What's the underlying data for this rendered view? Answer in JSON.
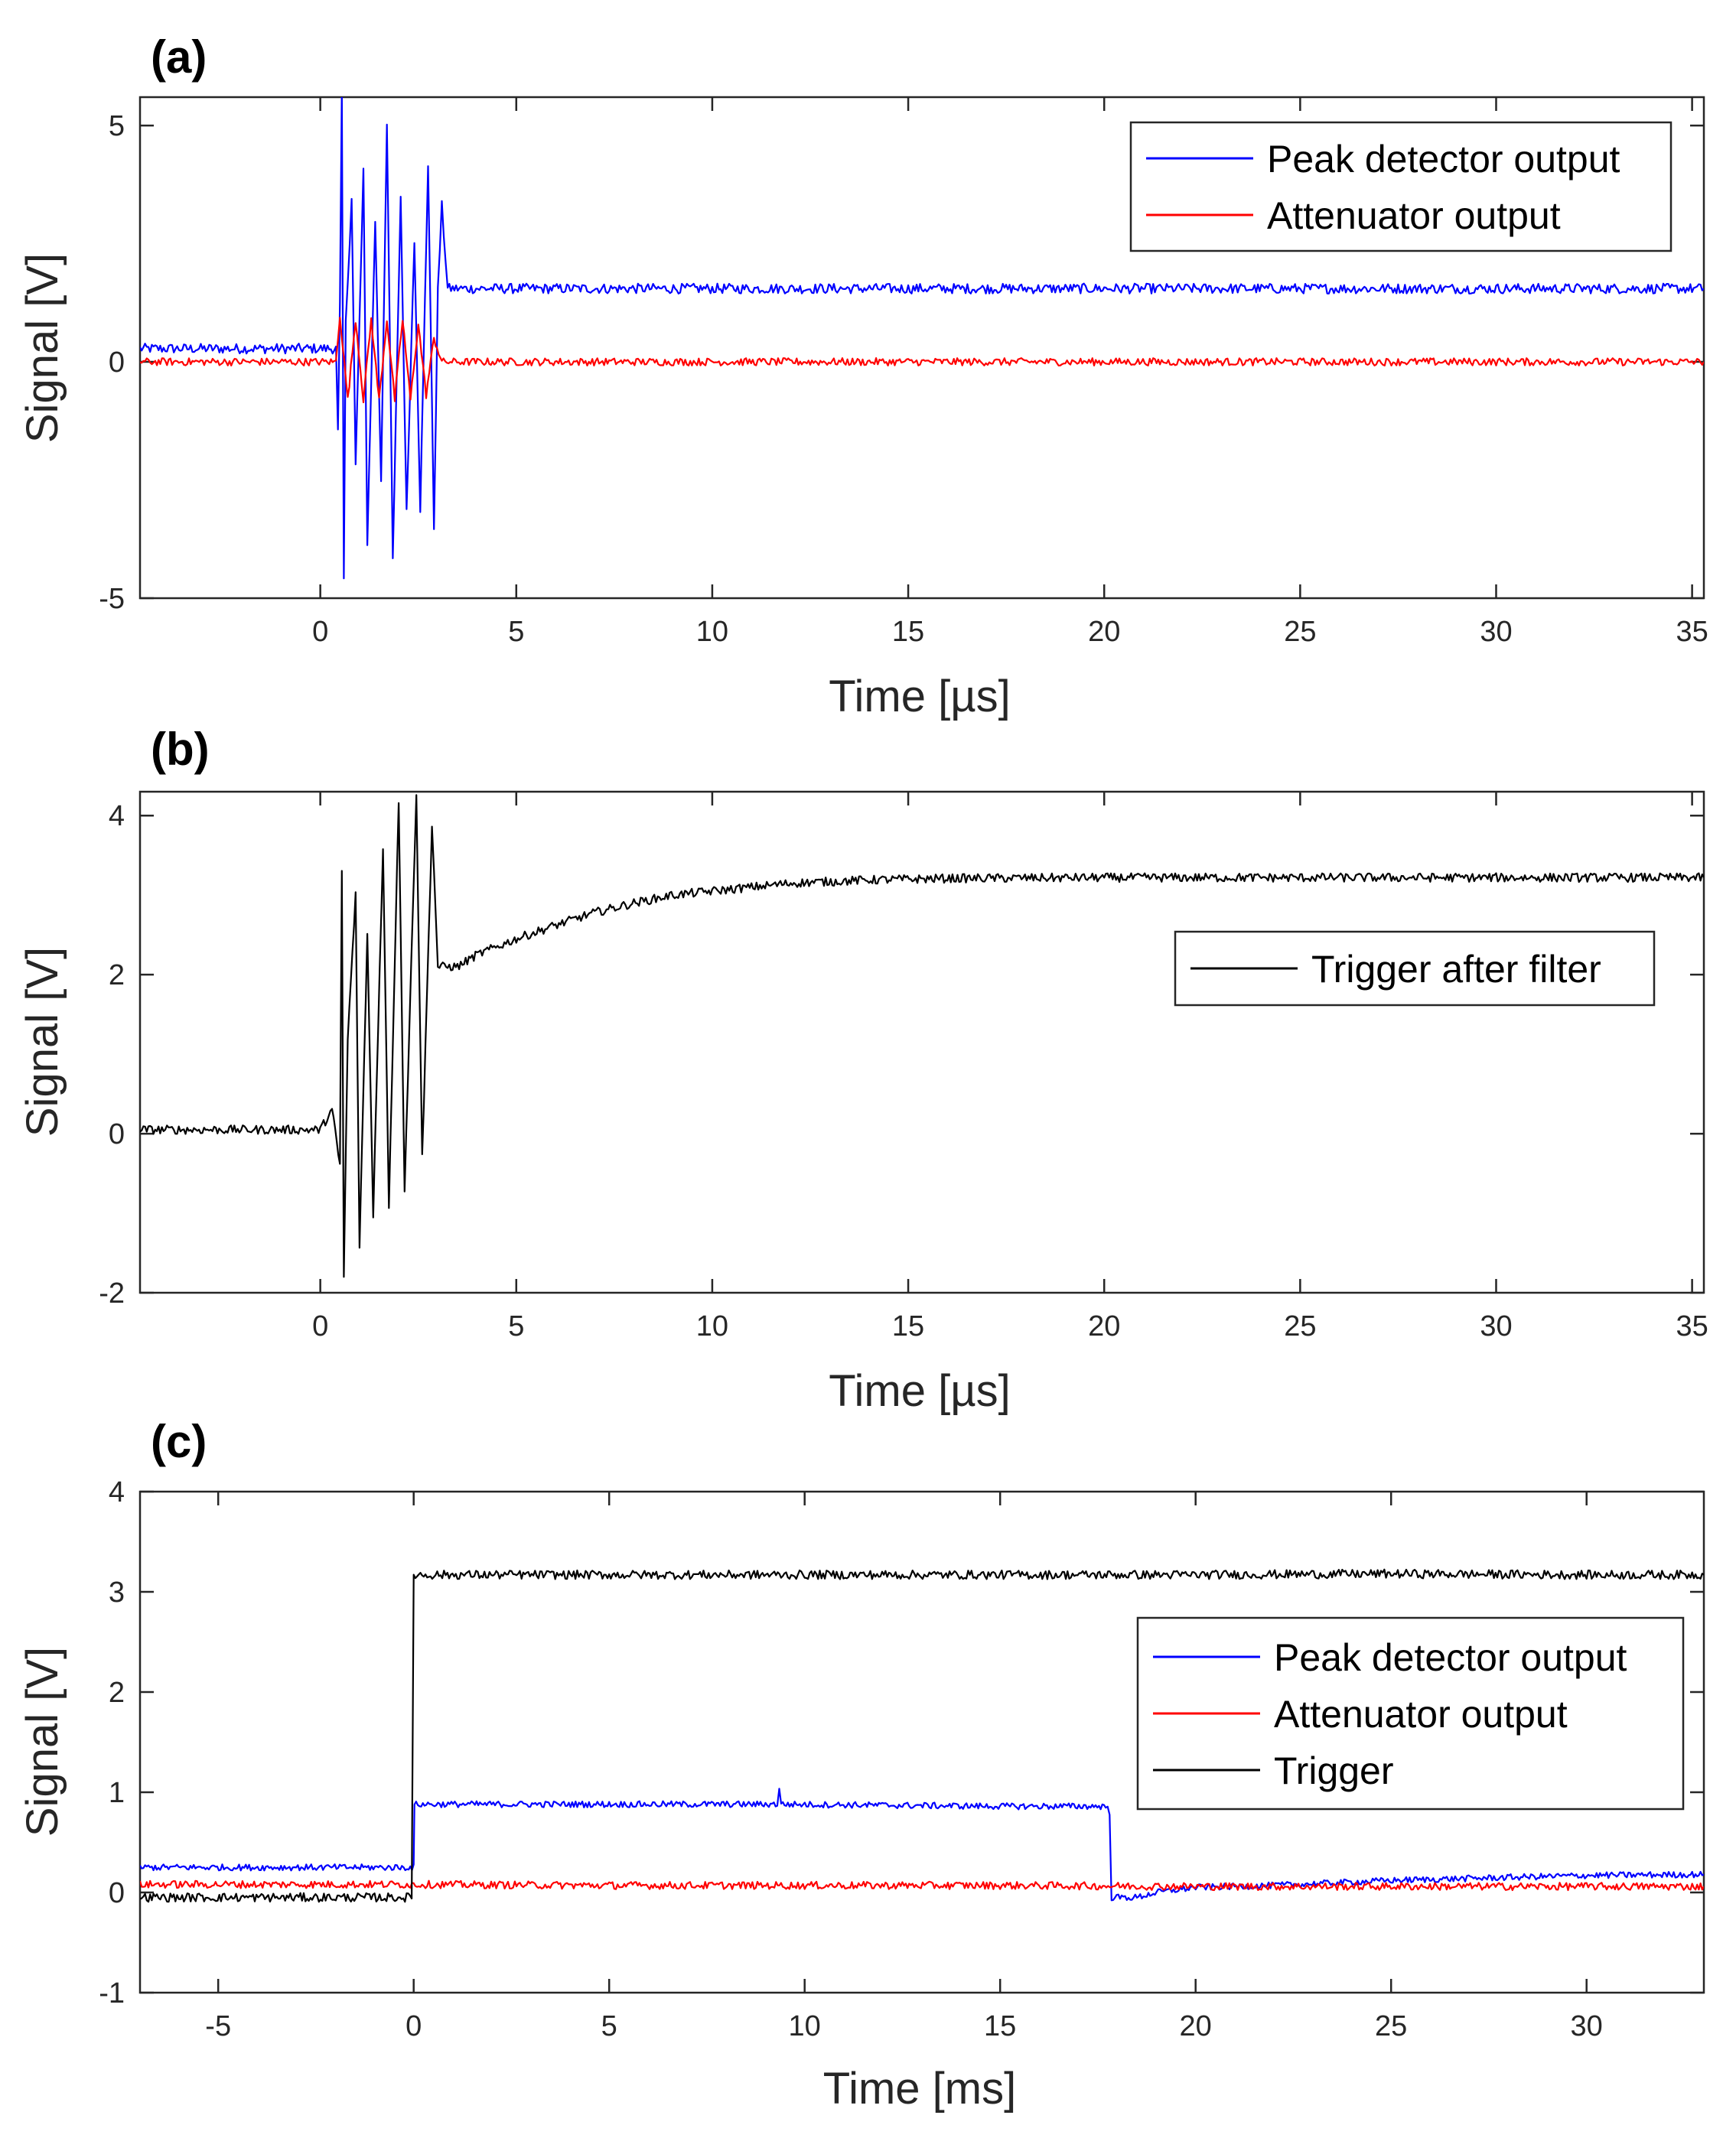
{
  "chart_data": [
    {
      "type": "line",
      "panel_label": "(a)",
      "xlabel": "Time [µs]",
      "ylabel": "Signal [V]",
      "xlim": [
        -4.6,
        35.3
      ],
      "ylim": [
        -5,
        5.6
      ],
      "xticks": [
        0,
        5,
        10,
        15,
        20,
        25,
        30,
        35
      ],
      "yticks": [
        -5,
        0,
        5
      ],
      "xtick_labels": [
        "0",
        "5",
        "10",
        "15",
        "20",
        "25",
        "30",
        "35"
      ],
      "ytick_labels": [
        "-5",
        "0",
        "5"
      ],
      "legend_position": "top-right",
      "series": [
        {
          "name": "Peak detector output",
          "color": "#0000ff",
          "points": [
            [
              -4.6,
              0.28
            ],
            [
              0.4,
              0.28
            ],
            [
              0.45,
              -1.5
            ],
            [
              0.5,
              1.2
            ],
            [
              0.55,
              5.7
            ],
            [
              0.6,
              -4.6
            ],
            [
              0.65,
              0.8
            ],
            [
              0.8,
              3.5
            ],
            [
              0.9,
              -2.2
            ],
            [
              1.1,
              4.0
            ],
            [
              1.2,
              -3.8
            ],
            [
              1.4,
              3.0
            ],
            [
              1.55,
              -2.5
            ],
            [
              1.7,
              5.1
            ],
            [
              1.85,
              -4.2
            ],
            [
              2.05,
              3.5
            ],
            [
              2.2,
              -3.2
            ],
            [
              2.4,
              2.6
            ],
            [
              2.55,
              -3.1
            ],
            [
              2.75,
              4.2
            ],
            [
              2.9,
              -3.5
            ],
            [
              3.0,
              1.5
            ],
            [
              3.1,
              3.3
            ],
            [
              3.25,
              1.55
            ],
            [
              5,
              1.55
            ],
            [
              10,
              1.55
            ],
            [
              15,
              1.55
            ],
            [
              20,
              1.55
            ],
            [
              25,
              1.55
            ],
            [
              30,
              1.55
            ],
            [
              35.3,
              1.55
            ]
          ]
        },
        {
          "name": "Attenuator output",
          "color": "#ff0000",
          "points": [
            [
              -4.6,
              0.0
            ],
            [
              0.4,
              0.0
            ],
            [
              0.5,
              1.0
            ],
            [
              0.7,
              -0.8
            ],
            [
              0.9,
              0.9
            ],
            [
              1.1,
              -0.8
            ],
            [
              1.3,
              0.9
            ],
            [
              1.5,
              -0.8
            ],
            [
              1.7,
              0.9
            ],
            [
              1.9,
              -0.8
            ],
            [
              2.1,
              0.9
            ],
            [
              2.3,
              -0.8
            ],
            [
              2.5,
              0.8
            ],
            [
              2.7,
              -0.7
            ],
            [
              2.9,
              0.5
            ],
            [
              3.1,
              0.0
            ],
            [
              5,
              0.0
            ],
            [
              10,
              0.0
            ],
            [
              15,
              0.0
            ],
            [
              20,
              0.0
            ],
            [
              25,
              0.0
            ],
            [
              30,
              0.0
            ],
            [
              35.3,
              0.0
            ]
          ]
        }
      ]
    },
    {
      "type": "line",
      "panel_label": "(b)",
      "xlabel": "Time [µs]",
      "ylabel": "Signal [V]",
      "xlim": [
        -4.6,
        35.3
      ],
      "ylim": [
        -2,
        4.3
      ],
      "xticks": [
        0,
        5,
        10,
        15,
        20,
        25,
        30,
        35
      ],
      "yticks": [
        -2,
        0,
        2,
        4
      ],
      "xtick_labels": [
        "0",
        "5",
        "10",
        "15",
        "20",
        "25",
        "30",
        "35"
      ],
      "ytick_labels": [
        "-2",
        "0",
        "2",
        "4"
      ],
      "legend_position": "middle-right",
      "series": [
        {
          "name": "Trigger after filter",
          "color": "#000000",
          "points": [
            [
              -4.6,
              0.05
            ],
            [
              0,
              0.05
            ],
            [
              0.3,
              0.3
            ],
            [
              0.5,
              -0.4
            ],
            [
              0.55,
              3.3
            ],
            [
              0.6,
              -1.8
            ],
            [
              0.7,
              1.2
            ],
            [
              0.9,
              3.0
            ],
            [
              1.0,
              -1.4
            ],
            [
              1.2,
              2.5
            ],
            [
              1.35,
              -1.0
            ],
            [
              1.6,
              3.6
            ],
            [
              1.75,
              -0.9
            ],
            [
              2.0,
              4.2
            ],
            [
              2.15,
              -0.7
            ],
            [
              2.45,
              4.3
            ],
            [
              2.6,
              -0.3
            ],
            [
              2.85,
              3.9
            ],
            [
              3.0,
              2.1
            ],
            [
              3.5,
              2.1
            ],
            [
              4,
              2.25
            ],
            [
              5,
              2.45
            ],
            [
              6,
              2.62
            ],
            [
              7,
              2.78
            ],
            [
              8,
              2.9
            ],
            [
              9,
              3.0
            ],
            [
              10,
              3.05
            ],
            [
              11,
              3.1
            ],
            [
              12,
              3.15
            ],
            [
              14,
              3.19
            ],
            [
              16,
              3.21
            ],
            [
              20,
              3.22
            ],
            [
              25,
              3.22
            ],
            [
              30,
              3.22
            ],
            [
              35.3,
              3.22
            ]
          ]
        }
      ]
    },
    {
      "type": "line",
      "panel_label": "(c)",
      "xlabel": "Time [ms]",
      "ylabel": "Signal [V]",
      "xlim": [
        -7,
        33
      ],
      "ylim": [
        -1,
        4
      ],
      "xticks": [
        -5,
        0,
        5,
        10,
        15,
        20,
        25,
        30
      ],
      "yticks": [
        -1,
        0,
        1,
        2,
        3,
        4
      ],
      "xtick_labels": [
        "-5",
        "0",
        "5",
        "10",
        "15",
        "20",
        "25",
        "30"
      ],
      "ytick_labels": [
        "-1",
        "0",
        "1",
        "2",
        "3",
        "4"
      ],
      "legend_position": "middle-right",
      "series": [
        {
          "name": "Peak detector output",
          "color": "#0000ff",
          "points": [
            [
              -7,
              0.25
            ],
            [
              0,
              0.25
            ],
            [
              0.02,
              0.88
            ],
            [
              5,
              0.88
            ],
            [
              9.3,
              0.88
            ],
            [
              9.35,
              1.05
            ],
            [
              9.4,
              0.88
            ],
            [
              15,
              0.86
            ],
            [
              17.7,
              0.86
            ],
            [
              17.8,
              0.8
            ],
            [
              17.85,
              -0.05
            ],
            [
              18.5,
              -0.05
            ],
            [
              19,
              0.0
            ],
            [
              20,
              0.05
            ],
            [
              22,
              0.07
            ],
            [
              25,
              0.12
            ],
            [
              30,
              0.17
            ],
            [
              33,
              0.18
            ]
          ]
        },
        {
          "name": "Attenuator output",
          "color": "#ff0000",
          "points": [
            [
              -7,
              0.08
            ],
            [
              0,
              0.08
            ],
            [
              5,
              0.07
            ],
            [
              10,
              0.07
            ],
            [
              15,
              0.07
            ],
            [
              20,
              0.06
            ],
            [
              25,
              0.06
            ],
            [
              30,
              0.06
            ],
            [
              33,
              0.06
            ]
          ]
        },
        {
          "name": "Trigger",
          "color": "#000000",
          "points": [
            [
              -7,
              -0.05
            ],
            [
              -0.05,
              -0.05
            ],
            [
              0,
              3.17
            ],
            [
              5,
              3.17
            ],
            [
              10,
              3.17
            ],
            [
              15,
              3.17
            ],
            [
              20,
              3.17
            ],
            [
              25,
              3.18
            ],
            [
              30,
              3.17
            ],
            [
              33,
              3.17
            ]
          ]
        }
      ]
    }
  ]
}
